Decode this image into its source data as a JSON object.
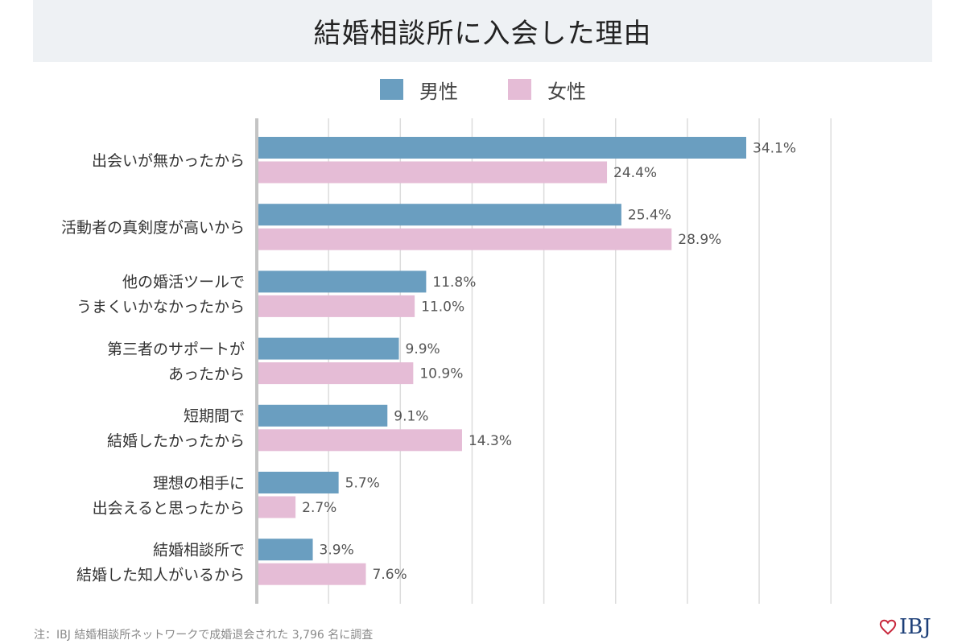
{
  "title": "結婚相談所に入会した理由",
  "chart_data": {
    "type": "bar",
    "orientation": "horizontal",
    "categories": [
      [
        "出会いが無かったから"
      ],
      [
        "活動者の真剣度が高いから"
      ],
      [
        "他の婚活ツールで",
        "うまくいかなかったから"
      ],
      [
        "第三者のサポートが",
        "あったから"
      ],
      [
        "短期間で",
        "結婚したかったから"
      ],
      [
        "理想の相手に",
        "出会えると思ったから"
      ],
      [
        "結婚相談所で",
        "結婚した知人がいるから"
      ]
    ],
    "series": [
      {
        "name": "男性",
        "color": "#6a9ec0",
        "values": [
          34.1,
          25.4,
          11.8,
          9.9,
          9.1,
          5.7,
          3.9
        ],
        "labels": [
          "34.1%",
          "25.4%",
          "11.8%",
          "9.9%",
          "9.1%",
          "5.7%",
          "3.9%"
        ]
      },
      {
        "name": "女性",
        "color": "#e5bcd6",
        "values": [
          24.4,
          28.9,
          11.0,
          10.9,
          14.3,
          2.7,
          7.6
        ],
        "labels": [
          "24.4%",
          "28.9%",
          "11.0%",
          "10.9%",
          "14.3%",
          "2.7%",
          "7.6%"
        ]
      }
    ],
    "xlim": [
      0,
      40
    ],
    "grid": true,
    "legend_position": "top-center"
  },
  "footnote": "注：IBJ 結婚相談所ネットワークで成婚退会された 3,796 名に調査",
  "logo_text": "IBJ"
}
